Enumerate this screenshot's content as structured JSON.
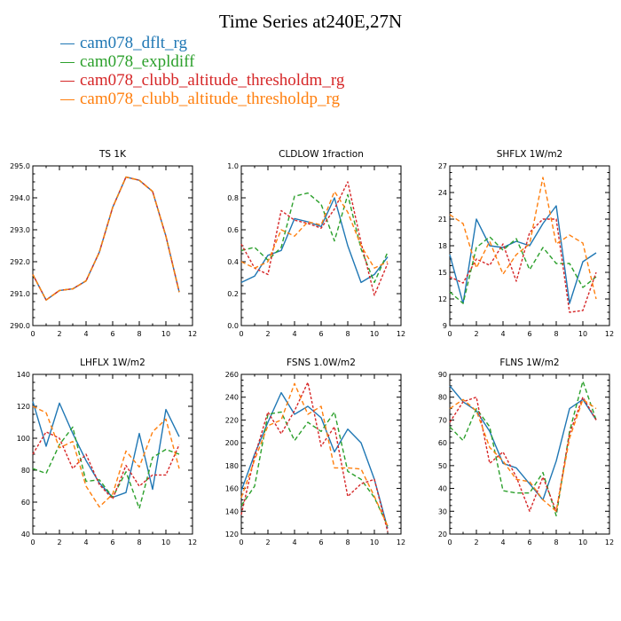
{
  "title": "Time Series at240E,27N",
  "legend": [
    {
      "name": "cam078_dflt_rg",
      "color": "#1f77b4",
      "dash": ""
    },
    {
      "name": "cam078_expldiff",
      "color": "#2ca02c",
      "dash": "5,3"
    },
    {
      "name": "cam078_clubb_altitude_thresholdm_rg",
      "color": "#d62728",
      "dash": "3,2"
    },
    {
      "name": "cam078_clubb_altitude_thresholdp_rg",
      "color": "#ff7f0e",
      "dash": "5,3"
    }
  ],
  "chart_data": [
    {
      "type": "line",
      "title": "TS   1K",
      "x": [
        0,
        1,
        2,
        3,
        4,
        5,
        6,
        7,
        8,
        9,
        10,
        11
      ],
      "xlim": [
        0,
        12
      ],
      "xticks": [
        0,
        2,
        4,
        6,
        8,
        10,
        12
      ],
      "xticklabels": [
        "0",
        "2",
        "4",
        "6",
        "8",
        "10",
        "12"
      ],
      "ylim": [
        290.0,
        295.0
      ],
      "yticks": [
        290,
        291,
        292,
        293,
        294,
        295
      ],
      "yticklabels": [
        "290.0",
        "291.0",
        "292.0",
        "293.0",
        "294.0",
        "295.0"
      ],
      "series": [
        {
          "name": "cam078_dflt_rg",
          "values": [
            291.6,
            290.8,
            291.1,
            291.15,
            291.4,
            292.3,
            293.7,
            294.65,
            294.55,
            294.2,
            292.8,
            291.05
          ]
        },
        {
          "name": "cam078_expldiff",
          "values": [
            291.6,
            290.8,
            291.1,
            291.15,
            291.4,
            292.3,
            293.7,
            294.65,
            294.55,
            294.2,
            292.8,
            291.05
          ]
        },
        {
          "name": "cam078_clubb_altitude_thresholdm_rg",
          "values": [
            291.6,
            290.8,
            291.1,
            291.15,
            291.4,
            292.3,
            293.7,
            294.65,
            294.55,
            294.2,
            292.8,
            291.05
          ]
        },
        {
          "name": "cam078_clubb_altitude_thresholdp_rg",
          "values": [
            291.6,
            290.8,
            291.1,
            291.15,
            291.4,
            292.3,
            293.7,
            294.65,
            294.55,
            294.2,
            292.8,
            291.05
          ]
        }
      ]
    },
    {
      "type": "line",
      "title": "CLDLOW   1fraction",
      "x": [
        0,
        1,
        2,
        3,
        4,
        5,
        6,
        7,
        8,
        9,
        10,
        11
      ],
      "xlim": [
        0,
        12
      ],
      "xticks": [
        0,
        2,
        4,
        6,
        8,
        10,
        12
      ],
      "xticklabels": [
        "0",
        "2",
        "4",
        "6",
        "8",
        "10",
        "12"
      ],
      "ylim": [
        0.0,
        1.0
      ],
      "yticks": [
        0,
        0.2,
        0.4,
        0.6,
        0.8,
        1.0
      ],
      "yticklabels": [
        "0.0",
        "0.2",
        "0.4",
        "0.6",
        "0.8",
        "1.0"
      ],
      "series": [
        {
          "name": "cam078_dflt_rg",
          "values": [
            0.27,
            0.31,
            0.44,
            0.47,
            0.67,
            0.65,
            0.62,
            0.8,
            0.5,
            0.27,
            0.32,
            0.43
          ]
        },
        {
          "name": "cam078_expldiff",
          "values": [
            0.47,
            0.49,
            0.41,
            0.49,
            0.81,
            0.83,
            0.76,
            0.53,
            0.82,
            0.48,
            0.27,
            0.46
          ]
        },
        {
          "name": "cam078_clubb_altitude_thresholdm_rg",
          "values": [
            0.51,
            0.36,
            0.32,
            0.72,
            0.66,
            0.64,
            0.61,
            0.73,
            0.9,
            0.52,
            0.19,
            0.39
          ]
        },
        {
          "name": "cam078_clubb_altitude_thresholdp_rg",
          "values": [
            0.4,
            0.36,
            0.4,
            0.6,
            0.56,
            0.65,
            0.63,
            0.84,
            0.71,
            0.5,
            0.36,
            0.4
          ]
        }
      ]
    },
    {
      "type": "line",
      "title": "SHFLX   1W/m2",
      "x": [
        0,
        1,
        2,
        3,
        4,
        5,
        6,
        7,
        8,
        9,
        10,
        11
      ],
      "xlim": [
        0,
        12
      ],
      "xticks": [
        0,
        2,
        4,
        6,
        8,
        10,
        12
      ],
      "xticklabels": [
        "0",
        "2",
        "4",
        "6",
        "8",
        "10",
        "12"
      ],
      "ylim": [
        9,
        27
      ],
      "yticks": [
        9,
        12,
        15,
        18,
        21,
        24,
        27
      ],
      "yticklabels": [
        "9",
        "12",
        "15",
        "18",
        "21",
        "24",
        "27"
      ],
      "series": [
        {
          "name": "cam078_dflt_rg",
          "values": [
            17.0,
            11.5,
            21.0,
            18.0,
            17.8,
            18.5,
            18.0,
            20.5,
            22.5,
            11.5,
            16.2,
            17.2
          ]
        },
        {
          "name": "cam078_expldiff",
          "values": [
            12.8,
            11.5,
            17.8,
            19.0,
            17.5,
            18.8,
            15.3,
            17.8,
            16.0,
            16.0,
            13.3,
            14.5
          ]
        },
        {
          "name": "cam078_clubb_altitude_thresholdm_rg",
          "values": [
            14.5,
            13.8,
            16.5,
            15.8,
            18.2,
            14.0,
            19.5,
            21.0,
            21.0,
            10.5,
            10.7,
            15.0
          ]
        },
        {
          "name": "cam078_clubb_altitude_thresholdp_rg",
          "values": [
            21.5,
            20.5,
            15.5,
            18.5,
            14.8,
            17.0,
            18.2,
            25.7,
            18.2,
            19.2,
            18.3,
            12.0
          ]
        }
      ]
    },
    {
      "type": "line",
      "title": "LHFLX   1W/m2",
      "x": [
        0,
        1,
        2,
        3,
        4,
        5,
        6,
        7,
        8,
        9,
        10,
        11
      ],
      "xlim": [
        0,
        12
      ],
      "xticks": [
        0,
        2,
        4,
        6,
        8,
        10,
        12
      ],
      "xticklabels": [
        "0",
        "2",
        "4",
        "6",
        "8",
        "10",
        "12"
      ],
      "ylim": [
        40,
        140
      ],
      "yticks": [
        40,
        60,
        80,
        100,
        120,
        140
      ],
      "yticklabels": [
        "40",
        "60",
        "80",
        "100",
        "120",
        "140"
      ],
      "series": [
        {
          "name": "cam078_dflt_rg",
          "values": [
            123,
            95,
            122,
            103,
            86,
            72,
            63,
            66,
            103,
            68,
            118,
            101
          ]
        },
        {
          "name": "cam078_expldiff",
          "values": [
            81,
            78,
            96,
            107,
            73,
            74,
            63,
            79,
            56,
            88,
            93,
            90
          ]
        },
        {
          "name": "cam078_clubb_altitude_thresholdm_rg",
          "values": [
            90,
            104,
            100,
            81,
            90,
            71,
            62,
            83,
            70,
            77,
            77,
            96
          ]
        },
        {
          "name": "cam078_clubb_altitude_thresholdp_rg",
          "values": [
            120,
            116,
            94,
            98,
            70,
            57,
            65,
            92,
            82,
            104,
            112,
            81
          ]
        }
      ]
    },
    {
      "type": "line",
      "title": "FSNS   1.0W/m2",
      "x": [
        0,
        1,
        2,
        3,
        4,
        5,
        6,
        7,
        8,
        9,
        10,
        11
      ],
      "xlim": [
        0,
        12
      ],
      "xticks": [
        0,
        2,
        4,
        6,
        8,
        10,
        12
      ],
      "xticklabels": [
        "0",
        "2",
        "4",
        "6",
        "8",
        "10",
        "12"
      ],
      "ylim": [
        120,
        260
      ],
      "yticks": [
        120,
        140,
        160,
        180,
        200,
        220,
        240,
        260
      ],
      "yticklabels": [
        "120",
        "140",
        "160",
        "180",
        "200",
        "220",
        "240",
        "260"
      ],
      "series": [
        {
          "name": "cam078_dflt_rg",
          "values": [
            158,
            190,
            218,
            244,
            225,
            232,
            222,
            192,
            212,
            200,
            168,
            125
          ]
        },
        {
          "name": "cam078_expldiff",
          "values": [
            145,
            162,
            225,
            227,
            202,
            218,
            210,
            227,
            175,
            168,
            152,
            127
          ]
        },
        {
          "name": "cam078_clubb_altitude_thresholdm_rg",
          "values": [
            137,
            188,
            227,
            208,
            228,
            253,
            197,
            214,
            153,
            164,
            168,
            122
          ]
        },
        {
          "name": "cam078_clubb_altitude_thresholdp_rg",
          "values": [
            152,
            185,
            215,
            220,
            252,
            225,
            232,
            178,
            178,
            177,
            153,
            127
          ]
        }
      ]
    },
    {
      "type": "line",
      "title": "FLNS   1W/m2",
      "x": [
        0,
        1,
        2,
        3,
        4,
        5,
        6,
        7,
        8,
        9,
        10,
        11
      ],
      "xlim": [
        0,
        12
      ],
      "xticks": [
        0,
        2,
        4,
        6,
        8,
        10,
        12
      ],
      "xticklabels": [
        "0",
        "2",
        "4",
        "6",
        "8",
        "10",
        "12"
      ],
      "ylim": [
        20,
        90
      ],
      "yticks": [
        20,
        30,
        40,
        50,
        60,
        70,
        80,
        90
      ],
      "yticklabels": [
        "20",
        "30",
        "40",
        "50",
        "60",
        "70",
        "80",
        "90"
      ],
      "series": [
        {
          "name": "cam078_dflt_rg",
          "values": [
            85,
            78,
            74,
            65,
            51,
            49,
            42,
            35,
            52,
            75,
            79,
            70
          ]
        },
        {
          "name": "cam078_expldiff",
          "values": [
            67,
            61,
            75,
            67,
            39,
            38,
            38,
            47,
            28,
            65,
            87,
            70
          ]
        },
        {
          "name": "cam078_clubb_altitude_thresholdm_rg",
          "values": [
            69,
            78,
            80,
            51,
            56,
            45,
            30,
            45,
            30,
            64,
            80,
            70
          ]
        },
        {
          "name": "cam078_clubb_altitude_thresholdp_rg",
          "values": [
            75,
            79,
            74,
            58,
            52,
            44,
            43,
            35,
            30,
            62,
            79,
            75
          ]
        }
      ]
    }
  ]
}
